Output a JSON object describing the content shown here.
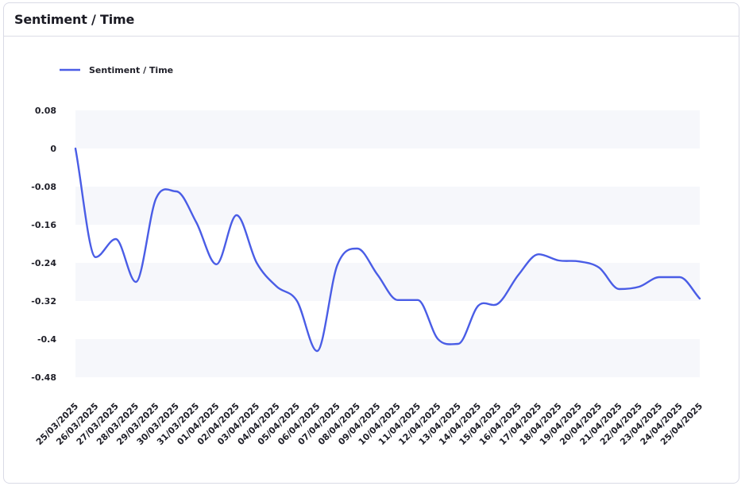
{
  "header": {
    "title": "Sentiment / Time"
  },
  "colors": {
    "line": "#4a5de6",
    "band": "#f6f7fb"
  },
  "chart_data": {
    "type": "line",
    "title": "",
    "xlabel": "",
    "ylabel": "",
    "legend": {
      "placement": "top-left"
    },
    "grid": "alternating horizontal bands",
    "ylim": [
      -0.48,
      0.08
    ],
    "y_ticks": [
      "0.08",
      "0",
      "-0.08",
      "-0.16",
      "-0.24",
      "-0.32",
      "-0.4",
      "-0.48"
    ],
    "y_tick_values": [
      0.08,
      0,
      -0.08,
      -0.16,
      -0.24,
      -0.32,
      -0.4,
      -0.48
    ],
    "categories": [
      "25/03/2025",
      "26/03/2025",
      "27/03/2025",
      "28/03/2025",
      "29/03/2025",
      "30/03/2025",
      "31/03/2025",
      "01/04/2025",
      "02/04/2025",
      "03/04/2025",
      "04/04/2025",
      "05/04/2025",
      "06/04/2025",
      "07/04/2025",
      "08/04/2025",
      "09/04/2025",
      "10/04/2025",
      "11/04/2025",
      "12/04/2025",
      "13/04/2025",
      "14/04/2025",
      "15/04/2025",
      "16/04/2025",
      "17/04/2025",
      "18/04/2025",
      "19/04/2025",
      "20/04/2025",
      "21/04/2025",
      "22/04/2025",
      "23/04/2025",
      "24/04/2025",
      "25/04/2025"
    ],
    "series": [
      {
        "name": "Sentiment / Time",
        "values": [
          0.0,
          -0.228,
          -0.19,
          -0.28,
          -0.105,
          -0.09,
          -0.155,
          -0.243,
          -0.14,
          -0.24,
          -0.29,
          -0.32,
          -0.425,
          -0.245,
          -0.21,
          -0.265,
          -0.318,
          -0.318,
          -0.4,
          -0.41,
          -0.33,
          -0.325,
          -0.265,
          -0.222,
          -0.235,
          -0.237,
          -0.25,
          -0.295,
          -0.29,
          -0.27,
          -0.27,
          -0.315
        ]
      }
    ]
  }
}
